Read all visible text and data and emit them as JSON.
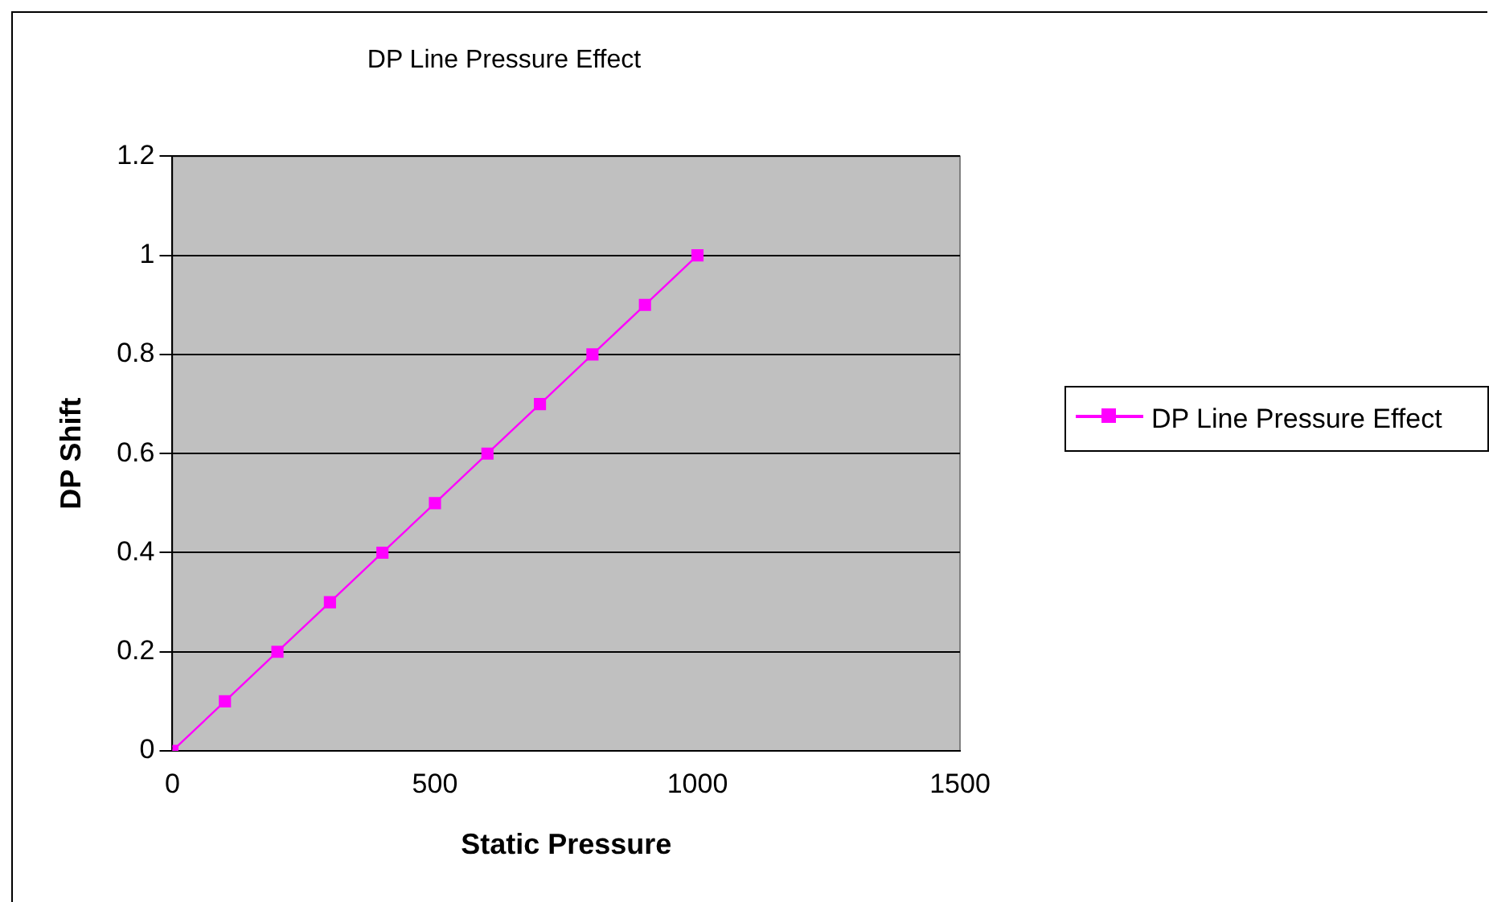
{
  "chart_data": {
    "type": "scatter",
    "title": "DP Line Pressure Effect",
    "xlabel": "Static Pressure",
    "ylabel": "DP Shift",
    "x": [
      0,
      100,
      200,
      300,
      400,
      500,
      600,
      700,
      800,
      900,
      1000
    ],
    "series": [
      {
        "name": "DP Line Pressure Effect",
        "color": "#ff00ff",
        "type": "line",
        "values": [
          0,
          0.1,
          0.2,
          0.3,
          0.4,
          0.5,
          0.6,
          0.7,
          0.8,
          0.9,
          1
        ]
      }
    ],
    "xlim": [
      0,
      1500
    ],
    "xticks": [
      0,
      500,
      1000,
      1500
    ],
    "ylim": [
      0,
      1.2
    ],
    "yticks": [
      0,
      0.2,
      0.4,
      0.6,
      0.8,
      1,
      1.2
    ],
    "grid": "y",
    "legend": "right",
    "marker": "square",
    "line_style": "solid"
  }
}
